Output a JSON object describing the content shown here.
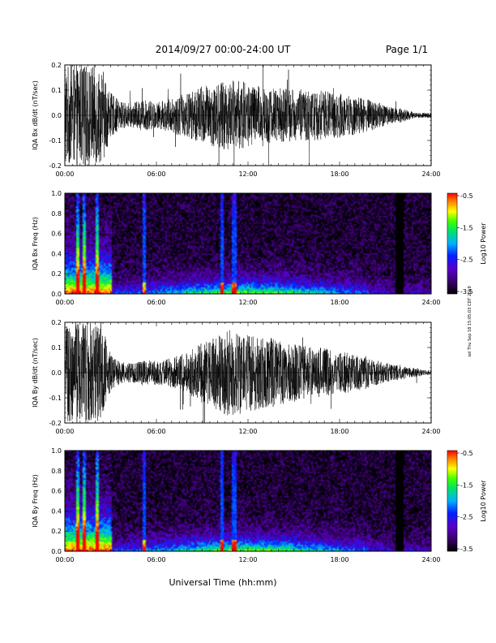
{
  "header": {
    "date_range": "2014/09/27  00:00-24:00 UT",
    "page": "Page 1/1"
  },
  "footer": {
    "xlabel": "Universal Time (hh:mm)",
    "side_note": "sol Thu Sep 18 15:05:03 CDT 2019"
  },
  "colors": {
    "trace": "#000000",
    "spectrogram_colormap": [
      "#000000",
      "#3a006a",
      "#5a00c8",
      "#0020ff",
      "#00b0ff",
      "#00e070",
      "#40ff00",
      "#ffff00",
      "#ff8000",
      "#ff0000"
    ]
  },
  "chart_data": [
    {
      "type": "line",
      "ylabel": "IQA Bx dB/dt (nT/sec)",
      "xlim": [
        "00:00",
        "24:00"
      ],
      "ylim": [
        -0.2,
        0.2
      ],
      "xticks": [
        "00:00",
        "06:00",
        "12:00",
        "18:00",
        "24:00"
      ],
      "yticks": [
        "0.2",
        "0.1",
        "0.0",
        "-0.1",
        "-0.2"
      ],
      "series": [
        {
          "x_hours": [
            0,
            0.5,
            1,
            1.5,
            2,
            2.5,
            3,
            3.5,
            4,
            4.5,
            5,
            5.5,
            6,
            6.5,
            7,
            7.5,
            8,
            8.5,
            9,
            9.5,
            10,
            10.5,
            11,
            11.5,
            12,
            12.5,
            13,
            13.5,
            14,
            14.5,
            15,
            15.5,
            16,
            16.5,
            17,
            17.5,
            18,
            18.5,
            19,
            19.5,
            20,
            20.5,
            21,
            21.5,
            22,
            22.5,
            23,
            23.5,
            24
          ],
          "amplitude": [
            0.2,
            0.2,
            0.2,
            0.2,
            0.2,
            0.18,
            0.09,
            0.06,
            0.05,
            0.05,
            0.06,
            0.06,
            0.05,
            0.06,
            0.07,
            0.08,
            0.09,
            0.1,
            0.12,
            0.12,
            0.13,
            0.14,
            0.14,
            0.14,
            0.13,
            0.12,
            0.12,
            0.11,
            0.11,
            0.11,
            0.1,
            0.1,
            0.1,
            0.1,
            0.1,
            0.09,
            0.09,
            0.08,
            0.08,
            0.07,
            0.06,
            0.06,
            0.04,
            0.03,
            0.03,
            0.02,
            0.01,
            0.01,
            0.01
          ]
        }
      ]
    },
    {
      "type": "heatmap",
      "ylabel": "IQA Bx Freq (Hz)",
      "xlim": [
        "00:00",
        "24:00"
      ],
      "ylim": [
        0.0,
        1.0
      ],
      "xticks": [
        "00:00",
        "06:00",
        "12:00",
        "18:00",
        "24:00"
      ],
      "yticks": [
        "1.0",
        "0.8",
        "0.6",
        "0.4",
        "0.2",
        "0.0"
      ],
      "colorbar": {
        "label": "Log10 Power",
        "range": [
          -3.5,
          -0.5
        ],
        "ticks": [
          "-0.5",
          "-1.5",
          "-2.5",
          "-3.5"
        ]
      },
      "bright_lines_hours": [
        0.8,
        1.2,
        2.1,
        5.2,
        10.3,
        11.1,
        22.0
      ]
    },
    {
      "type": "line",
      "ylabel": "IQA By dB/dt (nT/sec)",
      "xlim": [
        "00:00",
        "24:00"
      ],
      "ylim": [
        -0.2,
        0.2
      ],
      "xticks": [
        "00:00",
        "06:00",
        "12:00",
        "18:00",
        "24:00"
      ],
      "yticks": [
        "0.2",
        "0.1",
        "0.0",
        "-0.1",
        "-0.2"
      ],
      "series": [
        {
          "x_hours": [
            0,
            0.5,
            1,
            1.5,
            2,
            2.5,
            3,
            3.5,
            4,
            4.5,
            5,
            5.5,
            6,
            6.5,
            7,
            7.5,
            8,
            8.5,
            9,
            9.5,
            10,
            10.5,
            11,
            11.5,
            12,
            12.5,
            13,
            13.5,
            14,
            14.5,
            15,
            15.5,
            16,
            16.5,
            17,
            17.5,
            18,
            18.5,
            19,
            19.5,
            20,
            20.5,
            21,
            21.5,
            22,
            22.5,
            23,
            23.5,
            24
          ],
          "amplitude": [
            0.2,
            0.2,
            0.2,
            0.2,
            0.2,
            0.18,
            0.07,
            0.05,
            0.04,
            0.04,
            0.05,
            0.05,
            0.05,
            0.05,
            0.06,
            0.07,
            0.08,
            0.1,
            0.12,
            0.13,
            0.15,
            0.17,
            0.17,
            0.17,
            0.16,
            0.15,
            0.14,
            0.14,
            0.13,
            0.12,
            0.12,
            0.11,
            0.1,
            0.1,
            0.1,
            0.09,
            0.08,
            0.08,
            0.07,
            0.07,
            0.06,
            0.05,
            0.04,
            0.03,
            0.03,
            0.02,
            0.02,
            0.01,
            0.01
          ]
        }
      ]
    },
    {
      "type": "heatmap",
      "ylabel": "IQA By Freq (Hz)",
      "xlim": [
        "00:00",
        "24:00"
      ],
      "ylim": [
        0.0,
        1.0
      ],
      "xticks": [
        "00:00",
        "06:00",
        "12:00",
        "18:00",
        "24:00"
      ],
      "yticks": [
        "1.0",
        "0.8",
        "0.6",
        "0.4",
        "0.2",
        "0.0"
      ],
      "colorbar": {
        "label": "Log10 Power",
        "range": [
          -3.5,
          -0.5
        ],
        "ticks": [
          "-0.5",
          "-1.5",
          "-2.5",
          "-3.5"
        ]
      },
      "bright_lines_hours": [
        0.8,
        1.2,
        2.1,
        5.2,
        10.3,
        11.1,
        22.0
      ]
    }
  ]
}
